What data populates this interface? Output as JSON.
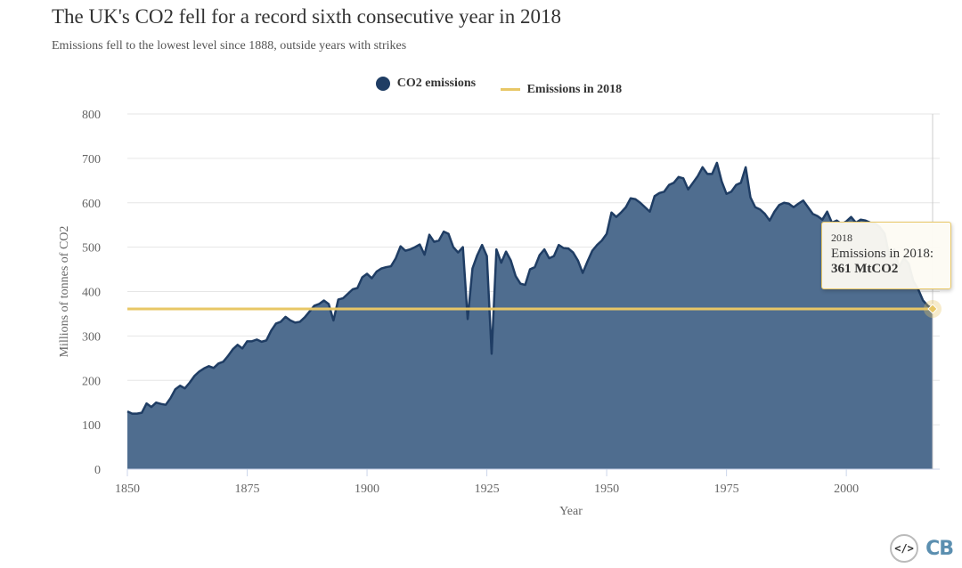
{
  "title": "The UK's CO2 fell for a record sixth consecutive year in 2018",
  "subtitle": "Emissions fell to the lowest level since 1888, outside years with strikes",
  "legend": {
    "series1": "CO2 emissions",
    "series2": "Emissions in 2018",
    "series1_color": "#1f3d64",
    "series2_color": "#e8c766"
  },
  "tooltip": {
    "year": "2018",
    "label": "Emissions in 2018:",
    "value": "361 MtCO2"
  },
  "footer": {
    "embed_icon": "</>",
    "logo": "CB"
  },
  "chart_data": {
    "type": "area",
    "xlabel": "Year",
    "ylabel": "Millions of tonnes of CO2",
    "xlim": [
      1850,
      2018
    ],
    "ylim": [
      0,
      800
    ],
    "x_ticks": [
      1850,
      1875,
      1900,
      1925,
      1950,
      1975,
      2000
    ],
    "y_ticks": [
      0,
      100,
      200,
      300,
      400,
      500,
      600,
      700,
      800
    ],
    "grid": true,
    "legend_position": "top-center",
    "series": [
      {
        "name": "CO2 emissions",
        "color": "#1f3d64",
        "points": [
          [
            1850,
            130
          ],
          [
            1851,
            125
          ],
          [
            1852,
            125
          ],
          [
            1853,
            127
          ],
          [
            1854,
            148
          ],
          [
            1855,
            140
          ],
          [
            1856,
            150
          ],
          [
            1857,
            147
          ],
          [
            1858,
            145
          ],
          [
            1859,
            160
          ],
          [
            1860,
            180
          ],
          [
            1861,
            188
          ],
          [
            1862,
            182
          ],
          [
            1863,
            195
          ],
          [
            1864,
            210
          ],
          [
            1865,
            220
          ],
          [
            1866,
            227
          ],
          [
            1867,
            232
          ],
          [
            1868,
            228
          ],
          [
            1869,
            238
          ],
          [
            1870,
            242
          ],
          [
            1871,
            255
          ],
          [
            1872,
            270
          ],
          [
            1873,
            280
          ],
          [
            1874,
            272
          ],
          [
            1875,
            288
          ],
          [
            1876,
            288
          ],
          [
            1877,
            292
          ],
          [
            1878,
            287
          ],
          [
            1879,
            290
          ],
          [
            1880,
            312
          ],
          [
            1881,
            328
          ],
          [
            1882,
            332
          ],
          [
            1883,
            343
          ],
          [
            1884,
            335
          ],
          [
            1885,
            330
          ],
          [
            1886,
            332
          ],
          [
            1887,
            342
          ],
          [
            1888,
            355
          ],
          [
            1889,
            368
          ],
          [
            1890,
            372
          ],
          [
            1891,
            380
          ],
          [
            1892,
            372
          ],
          [
            1893,
            335
          ],
          [
            1894,
            382
          ],
          [
            1895,
            385
          ],
          [
            1896,
            395
          ],
          [
            1897,
            405
          ],
          [
            1898,
            408
          ],
          [
            1899,
            432
          ],
          [
            1900,
            440
          ],
          [
            1901,
            430
          ],
          [
            1902,
            445
          ],
          [
            1903,
            452
          ],
          [
            1904,
            455
          ],
          [
            1905,
            457
          ],
          [
            1906,
            475
          ],
          [
            1907,
            502
          ],
          [
            1908,
            492
          ],
          [
            1909,
            495
          ],
          [
            1910,
            500
          ],
          [
            1911,
            506
          ],
          [
            1912,
            483
          ],
          [
            1913,
            528
          ],
          [
            1914,
            512
          ],
          [
            1915,
            515
          ],
          [
            1916,
            535
          ],
          [
            1917,
            530
          ],
          [
            1918,
            500
          ],
          [
            1919,
            488
          ],
          [
            1920,
            500
          ],
          [
            1921,
            338
          ],
          [
            1922,
            452
          ],
          [
            1923,
            482
          ],
          [
            1924,
            505
          ],
          [
            1925,
            480
          ],
          [
            1926,
            260
          ],
          [
            1927,
            495
          ],
          [
            1928,
            465
          ],
          [
            1929,
            490
          ],
          [
            1930,
            470
          ],
          [
            1931,
            435
          ],
          [
            1932,
            418
          ],
          [
            1933,
            415
          ],
          [
            1934,
            450
          ],
          [
            1935,
            455
          ],
          [
            1936,
            482
          ],
          [
            1937,
            495
          ],
          [
            1938,
            475
          ],
          [
            1939,
            480
          ],
          [
            1940,
            505
          ],
          [
            1941,
            498
          ],
          [
            1942,
            497
          ],
          [
            1943,
            488
          ],
          [
            1944,
            470
          ],
          [
            1945,
            442
          ],
          [
            1946,
            468
          ],
          [
            1947,
            492
          ],
          [
            1948,
            505
          ],
          [
            1949,
            515
          ],
          [
            1950,
            530
          ],
          [
            1951,
            578
          ],
          [
            1952,
            568
          ],
          [
            1953,
            578
          ],
          [
            1954,
            590
          ],
          [
            1955,
            610
          ],
          [
            1956,
            608
          ],
          [
            1957,
            600
          ],
          [
            1958,
            590
          ],
          [
            1959,
            580
          ],
          [
            1960,
            615
          ],
          [
            1961,
            622
          ],
          [
            1962,
            625
          ],
          [
            1963,
            640
          ],
          [
            1964,
            645
          ],
          [
            1965,
            658
          ],
          [
            1966,
            655
          ],
          [
            1967,
            630
          ],
          [
            1968,
            645
          ],
          [
            1969,
            660
          ],
          [
            1970,
            680
          ],
          [
            1971,
            665
          ],
          [
            1972,
            665
          ],
          [
            1973,
            690
          ],
          [
            1974,
            648
          ],
          [
            1975,
            620
          ],
          [
            1976,
            625
          ],
          [
            1977,
            640
          ],
          [
            1978,
            645
          ],
          [
            1979,
            680
          ],
          [
            1980,
            612
          ],
          [
            1981,
            590
          ],
          [
            1982,
            585
          ],
          [
            1983,
            575
          ],
          [
            1984,
            560
          ],
          [
            1985,
            580
          ],
          [
            1986,
            595
          ],
          [
            1987,
            600
          ],
          [
            1988,
            598
          ],
          [
            1989,
            590
          ],
          [
            1990,
            598
          ],
          [
            1991,
            605
          ],
          [
            1992,
            590
          ],
          [
            1993,
            575
          ],
          [
            1994,
            570
          ],
          [
            1995,
            562
          ],
          [
            1996,
            580
          ],
          [
            1997,
            555
          ],
          [
            1998,
            560
          ],
          [
            1999,
            552
          ],
          [
            2000,
            558
          ],
          [
            2001,
            568
          ],
          [
            2002,
            555
          ],
          [
            2003,
            562
          ],
          [
            2004,
            560
          ],
          [
            2005,
            555
          ],
          [
            2006,
            553
          ],
          [
            2007,
            545
          ],
          [
            2008,
            530
          ],
          [
            2009,
            478
          ],
          [
            2010,
            495
          ],
          [
            2011,
            455
          ],
          [
            2012,
            475
          ],
          [
            2013,
            463
          ],
          [
            2014,
            423
          ],
          [
            2015,
            405
          ],
          [
            2016,
            380
          ],
          [
            2017,
            368
          ],
          [
            2018,
            361
          ]
        ]
      },
      {
        "name": "Emissions in 2018",
        "color": "#e8c766",
        "value": 361
      }
    ],
    "highlight": {
      "x": 2018,
      "y": 361
    }
  }
}
